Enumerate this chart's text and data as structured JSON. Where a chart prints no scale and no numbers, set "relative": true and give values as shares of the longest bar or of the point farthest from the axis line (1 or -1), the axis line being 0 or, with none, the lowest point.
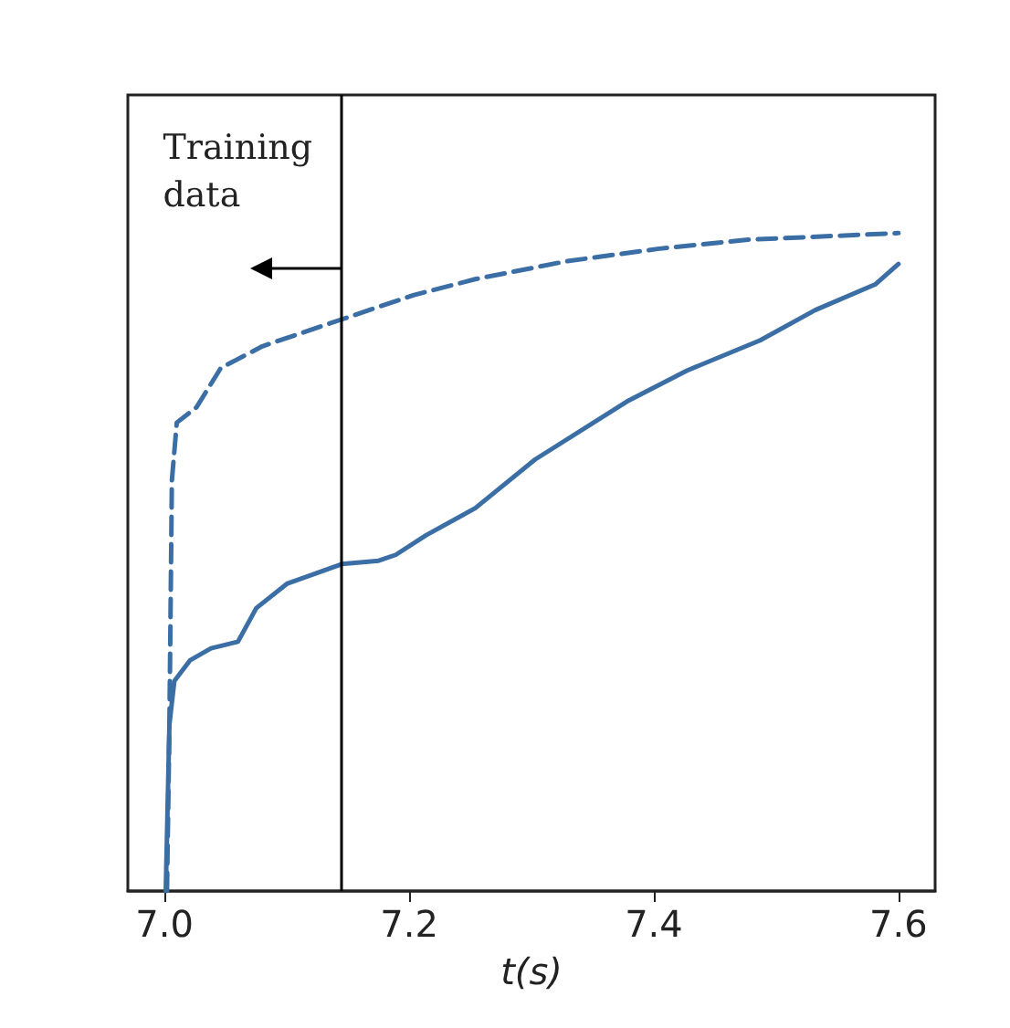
{
  "chart_data": {
    "type": "line",
    "xlabel": "t(s)",
    "relative": true,
    "tick_labels": "x",
    "marker": "none",
    "xlim": [
      6.97,
      7.63
    ],
    "xticks": [
      {
        "value": 7.0,
        "label": "7.0"
      },
      {
        "value": 7.2,
        "label": "7.2"
      },
      {
        "value": 7.4,
        "label": "7.4"
      },
      {
        "value": 7.6,
        "label": "7.6"
      }
    ],
    "series": [
      {
        "color": "#3a6ea5",
        "line_style": "dashed",
        "x": [
          7.002,
          7.004,
          7.006,
          7.01,
          7.026,
          7.046,
          7.08,
          7.145,
          7.204,
          7.254,
          7.328,
          7.403,
          7.477,
          7.6
        ],
        "values": [
          0,
          0.254,
          0.624,
          0.712,
          0.735,
          0.795,
          0.828,
          0.869,
          0.906,
          0.93,
          0.957,
          0.976,
          0.99,
          1.0
        ]
      },
      {
        "color": "#3a6ea5",
        "line_style": "solid",
        "x": [
          7.001,
          7.004,
          7.008,
          7.021,
          7.038,
          7.06,
          7.075,
          7.1,
          7.145,
          7.175,
          7.189,
          7.214,
          7.254,
          7.303,
          7.378,
          7.427,
          7.487,
          7.532,
          7.581,
          7.6
        ],
        "values": [
          0,
          0.254,
          0.319,
          0.351,
          0.369,
          0.379,
          0.43,
          0.467,
          0.497,
          0.502,
          0.511,
          0.541,
          0.582,
          0.656,
          0.744,
          0.791,
          0.837,
          0.883,
          0.922,
          0.953
        ]
      }
    ],
    "ref_lines": [
      {
        "axis": "x",
        "value": 7.145,
        "label": "Training data",
        "color": "#000000",
        "line_style": "solid"
      }
    ]
  }
}
